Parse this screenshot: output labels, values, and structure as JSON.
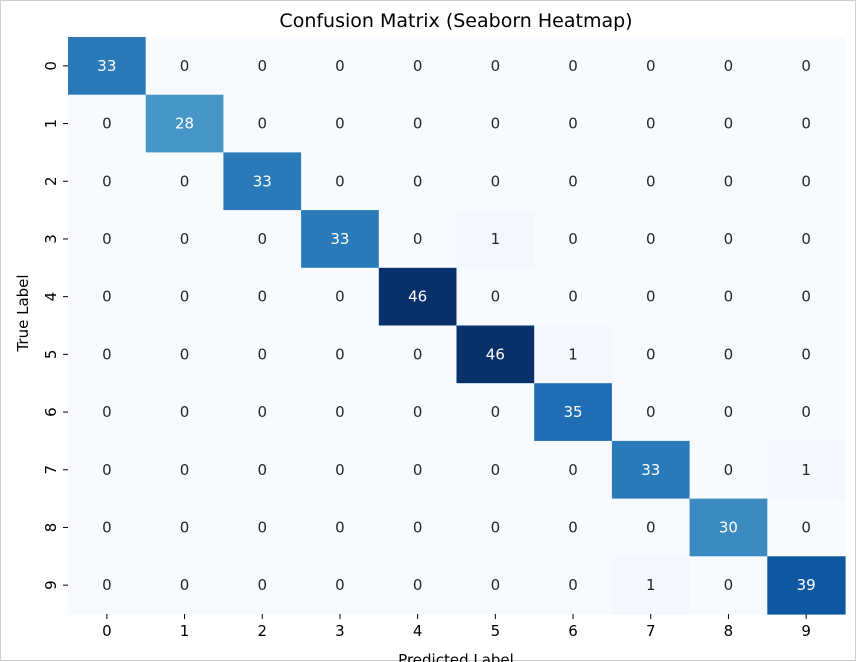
{
  "chart_data": {
    "type": "heatmap",
    "title": "Confusion Matrix (Seaborn Heatmap)",
    "xlabel": "Predicted Label",
    "ylabel": "True Label",
    "x_categories": [
      "0",
      "1",
      "2",
      "3",
      "4",
      "5",
      "6",
      "7",
      "8",
      "9"
    ],
    "y_categories": [
      "0",
      "1",
      "2",
      "3",
      "4",
      "5",
      "6",
      "7",
      "8",
      "9"
    ],
    "values": [
      [
        33,
        0,
        0,
        0,
        0,
        0,
        0,
        0,
        0,
        0
      ],
      [
        0,
        28,
        0,
        0,
        0,
        0,
        0,
        0,
        0,
        0
      ],
      [
        0,
        0,
        33,
        0,
        0,
        0,
        0,
        0,
        0,
        0
      ],
      [
        0,
        0,
        0,
        33,
        0,
        1,
        0,
        0,
        0,
        0
      ],
      [
        0,
        0,
        0,
        0,
        46,
        0,
        0,
        0,
        0,
        0
      ],
      [
        0,
        0,
        0,
        0,
        0,
        46,
        1,
        0,
        0,
        0
      ],
      [
        0,
        0,
        0,
        0,
        0,
        0,
        35,
        0,
        0,
        0
      ],
      [
        0,
        0,
        0,
        0,
        0,
        0,
        0,
        33,
        0,
        1
      ],
      [
        0,
        0,
        0,
        0,
        0,
        0,
        0,
        0,
        30,
        0
      ],
      [
        0,
        0,
        0,
        0,
        0,
        0,
        0,
        1,
        0,
        39
      ]
    ],
    "colormap": "Blues",
    "annotated": true,
    "colorbar": false,
    "grid": false
  }
}
